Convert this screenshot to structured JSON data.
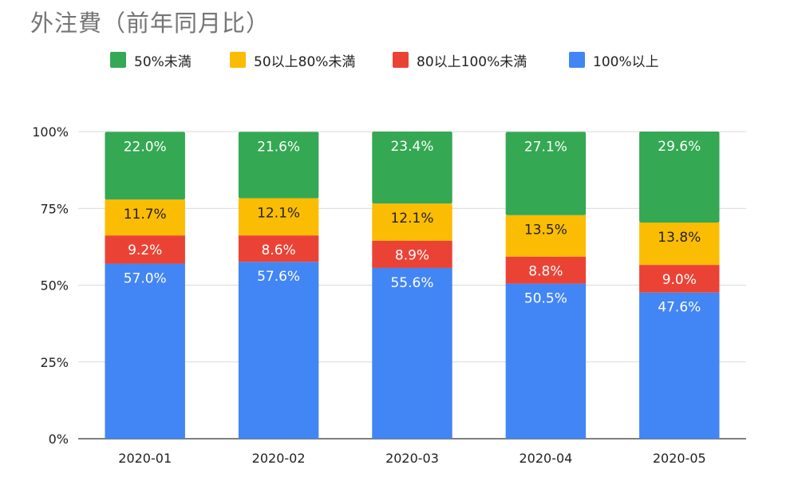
{
  "chart_data": {
    "type": "bar",
    "stacked": true,
    "title": "外注費（前年同月比）",
    "xlabel": "",
    "ylabel": "",
    "ylim": [
      0,
      100
    ],
    "yticks": [
      "0%",
      "25%",
      "50%",
      "75%",
      "100%"
    ],
    "ytick_values": [
      0,
      25,
      50,
      75,
      100
    ],
    "grid": true,
    "legend": "top",
    "categories": [
      "2020-01",
      "2020-02",
      "2020-03",
      "2020-04",
      "2020-05"
    ],
    "series": [
      {
        "name": "100%以上",
        "color": "#4285f4",
        "values": [
          57.0,
          57.6,
          55.6,
          50.5,
          47.6
        ],
        "labels": [
          "57.0%",
          "57.6%",
          "55.6%",
          "50.5%",
          "47.6%"
        ],
        "label_color": "#ffffff"
      },
      {
        "name": "80以上100%未満",
        "color": "#ea4335",
        "values": [
          9.2,
          8.6,
          8.9,
          8.8,
          9.0
        ],
        "labels": [
          "9.2%",
          "8.6%",
          "8.9%",
          "8.8%",
          "9.0%"
        ],
        "label_color": "#ffffff"
      },
      {
        "name": "50以上80%未満",
        "color": "#fbbc04",
        "values": [
          11.7,
          12.1,
          12.1,
          13.5,
          13.8
        ],
        "labels": [
          "11.7%",
          "12.1%",
          "12.1%",
          "13.5%",
          "13.8%"
        ],
        "label_color": "#222222"
      },
      {
        "name": "50%未満",
        "color": "#34a853",
        "values": [
          22.0,
          21.6,
          23.4,
          27.1,
          29.6
        ],
        "labels": [
          "22.0%",
          "21.6%",
          "23.4%",
          "27.1%",
          "29.6%"
        ],
        "label_color": "#ffffff"
      }
    ],
    "legend_order": [
      "50%未満",
      "50以上80%未満",
      "80以上100%未満",
      "100%以上"
    ]
  }
}
